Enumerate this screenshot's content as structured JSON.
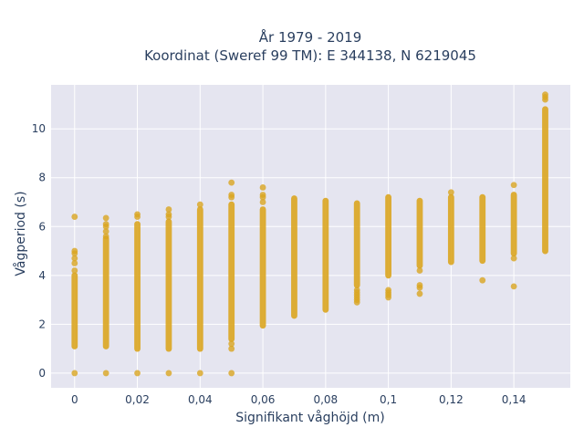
{
  "chart_data": {
    "type": "scatter",
    "title_line1": "År 1979 - 2019",
    "title_line2": "Koordinat (Sweref 99 TM): E 344138, N 6219045",
    "xlabel": "Signifikant våghöjd (m)",
    "ylabel": "Vågperiod (s)",
    "xlim": [
      -0.0075,
      0.158
    ],
    "ylim": [
      -0.6,
      11.8
    ],
    "x_ticks": [
      0,
      0.02,
      0.04,
      0.06,
      0.08,
      0.1,
      0.12,
      0.14
    ],
    "x_tick_labels": [
      "0",
      "0,02",
      "0,04",
      "0,06",
      "0,08",
      "0,1",
      "0,12",
      "0,14"
    ],
    "y_ticks": [
      0,
      2,
      4,
      6,
      8,
      10
    ],
    "y_tick_labels": [
      "0",
      "2",
      "4",
      "6",
      "8",
      "10"
    ],
    "grid": true,
    "marker_color": "#DAA520",
    "plot_bg": "#E5E5F0",
    "series": [
      {
        "columns": [
          {
            "x": 0,
            "ranges": [
              [
                1.1,
                4.0
              ]
            ],
            "points": [
              0,
              4.2,
              4.5,
              4.7,
              4.9,
              5.0,
              6.4
            ]
          },
          {
            "x": 0.01,
            "ranges": [
              [
                1.1,
                5.5
              ]
            ],
            "points": [
              0,
              5.6,
              5.8,
              6.0,
              6.1,
              6.35
            ]
          },
          {
            "x": 0.02,
            "ranges": [
              [
                1.0,
                6.1
              ]
            ],
            "points": [
              0,
              6.4,
              6.5
            ]
          },
          {
            "x": 0.03,
            "ranges": [
              [
                1.0,
                6.2
              ]
            ],
            "points": [
              0,
              6.4,
              6.5,
              6.7
            ]
          },
          {
            "x": 0.04,
            "ranges": [
              [
                1.0,
                6.7
              ]
            ],
            "points": [
              0,
              6.9
            ]
          },
          {
            "x": 0.05,
            "ranges": [
              [
                1.4,
                6.9
              ]
            ],
            "points": [
              0,
              1.0,
              1.2,
              7.2,
              7.3,
              7.8
            ]
          },
          {
            "x": 0.06,
            "ranges": [
              [
                1.95,
                6.7
              ]
            ],
            "points": [
              7.0,
              7.2,
              7.3,
              7.6
            ]
          },
          {
            "x": 0.07,
            "ranges": [
              [
                2.35,
                7.15
              ]
            ],
            "points": []
          },
          {
            "x": 0.08,
            "ranges": [
              [
                2.6,
                7.05
              ]
            ],
            "points": []
          },
          {
            "x": 0.09,
            "ranges": [
              [
                3.6,
                6.95
              ]
            ],
            "points": [
              2.9,
              3.0,
              3.1,
              3.2,
              3.3,
              3.4
            ]
          },
          {
            "x": 0.1,
            "ranges": [
              [
                4.0,
                7.2
              ]
            ],
            "points": [
              3.1,
              3.2,
              3.3,
              3.4
            ]
          },
          {
            "x": 0.11,
            "ranges": [
              [
                4.4,
                7.05
              ]
            ],
            "points": [
              3.25,
              3.5,
              3.6,
              4.2
            ]
          },
          {
            "x": 0.12,
            "ranges": [
              [
                4.55,
                7.2
              ]
            ],
            "points": [
              7.4
            ]
          },
          {
            "x": 0.13,
            "ranges": [
              [
                4.6,
                7.2
              ]
            ],
            "points": [
              3.8
            ]
          },
          {
            "x": 0.14,
            "ranges": [
              [
                4.9,
                7.3
              ]
            ],
            "points": [
              3.55,
              4.7,
              7.7
            ]
          },
          {
            "x": 0.15,
            "ranges": [
              [
                5.0,
                10.8
              ]
            ],
            "points": [
              11.2,
              11.3,
              11.4
            ]
          }
        ]
      }
    ]
  }
}
